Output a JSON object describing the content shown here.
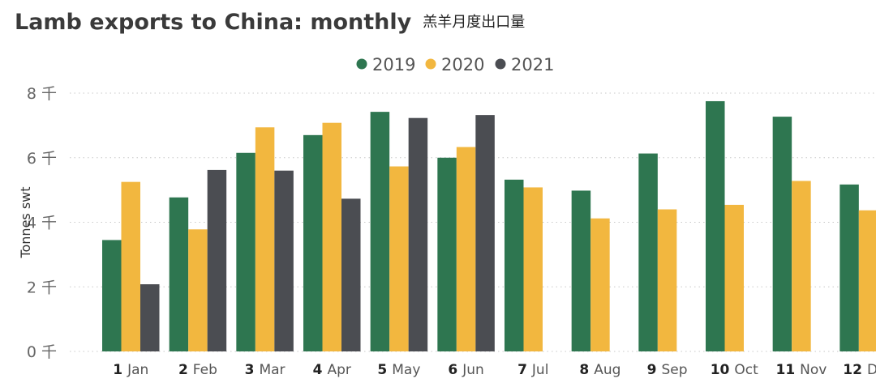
{
  "chart_data": {
    "type": "bar",
    "title": "Lamb exports to China: monthly",
    "subtitle": "羔羊月度出口量",
    "ylabel": "Tonnes swt",
    "ylim": [
      0,
      8
    ],
    "yticks": [
      {
        "value": 0,
        "label": "0 千"
      },
      {
        "value": 2,
        "label": "2 千"
      },
      {
        "value": 4,
        "label": "4 千"
      },
      {
        "value": 6,
        "label": "6 千"
      },
      {
        "value": 8,
        "label": "8 千"
      }
    ],
    "grid": true,
    "legend_position": "top-center",
    "categories": [
      {
        "num": "1",
        "month": "Jan"
      },
      {
        "num": "2",
        "month": "Feb"
      },
      {
        "num": "3",
        "month": "Mar"
      },
      {
        "num": "4",
        "month": "Apr"
      },
      {
        "num": "5",
        "month": "May"
      },
      {
        "num": "6",
        "month": "Jun"
      },
      {
        "num": "7",
        "month": "Jul"
      },
      {
        "num": "8",
        "month": "Aug"
      },
      {
        "num": "9",
        "month": "Sep"
      },
      {
        "num": "10",
        "month": "Oct"
      },
      {
        "num": "11",
        "month": "Nov"
      },
      {
        "num": "12",
        "month": "Dec"
      }
    ],
    "series": [
      {
        "name": "2019",
        "color": "#2e7650",
        "values": [
          3.45,
          4.77,
          6.15,
          6.7,
          7.42,
          6.0,
          5.32,
          4.98,
          6.13,
          7.75,
          7.27,
          5.17
        ]
      },
      {
        "name": "2020",
        "color": "#f2b73f",
        "values": [
          5.25,
          3.78,
          6.94,
          7.08,
          5.73,
          6.33,
          5.08,
          4.12,
          4.4,
          4.54,
          5.28,
          4.37
        ]
      },
      {
        "name": "2021",
        "color": "#4b4d52",
        "values": [
          2.08,
          5.62,
          5.6,
          4.73,
          7.23,
          7.32,
          null,
          null,
          null,
          null,
          null,
          null
        ]
      }
    ]
  }
}
